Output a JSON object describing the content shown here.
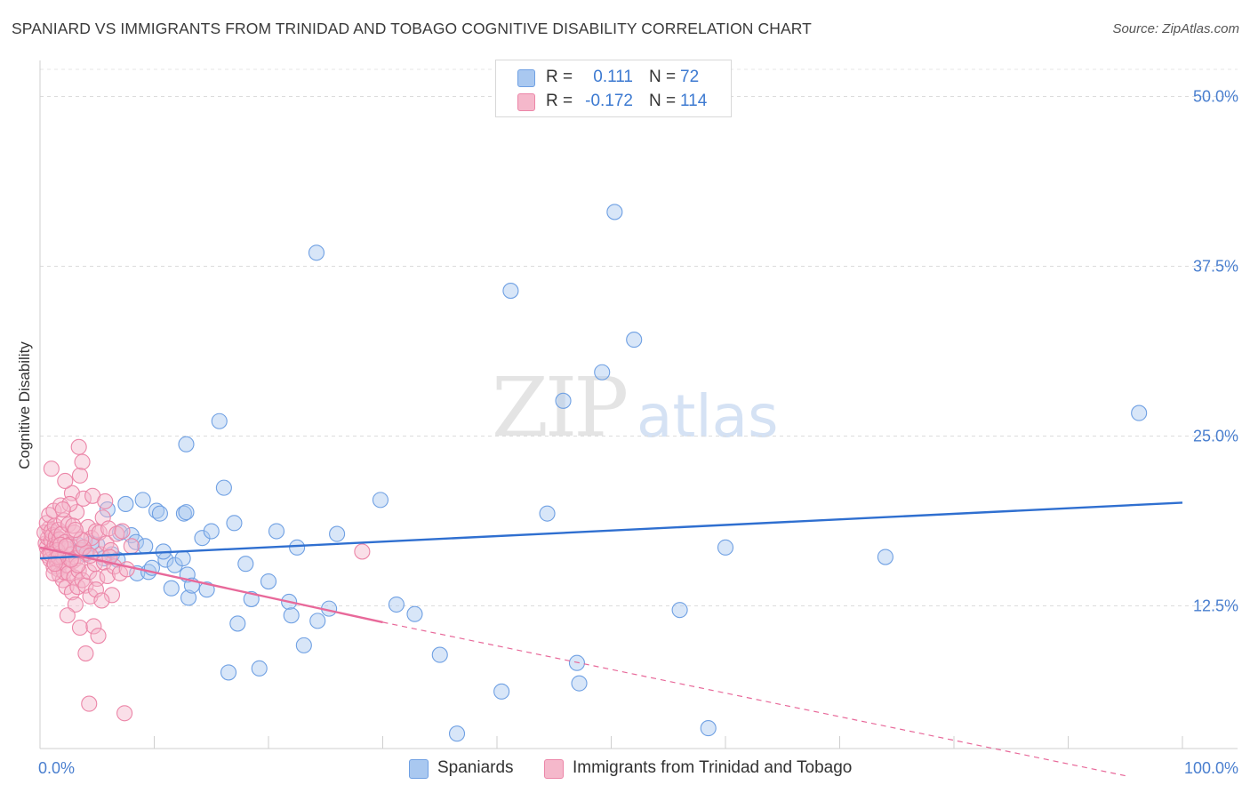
{
  "title": "SPANIARD VS IMMIGRANTS FROM TRINIDAD AND TOBAGO COGNITIVE DISABILITY CORRELATION CHART",
  "source": "Source: ZipAtlas.com",
  "watermark": {
    "zip": "ZIP",
    "atlas": "atlas"
  },
  "legend_top": [
    {
      "r_label": "R =",
      "r_value": "0.111",
      "n_label": "N =",
      "n_value": "72",
      "color": "#a9c8f0"
    },
    {
      "r_label": "R =",
      "r_value": "-0.172",
      "n_label": "N =",
      "n_value": "114",
      "color": "#f5b8cb"
    }
  ],
  "legend_bottom": [
    {
      "label": "Spaniards",
      "color": "#a9c8f0"
    },
    {
      "label": "Immigrants from Trinidad and Tobago",
      "color": "#f5b8cb"
    }
  ],
  "chart_data": {
    "type": "scatter",
    "title": "SPANIARD VS IMMIGRANTS FROM TRINIDAD AND TOBAGO COGNITIVE DISABILITY CORRELATION CHART",
    "xlabel": "",
    "ylabel": "Cognitive Disability",
    "xlim": [
      0,
      100
    ],
    "ylim": [
      2,
      52
    ],
    "x_tick_labels": [
      "0.0%",
      "100.0%"
    ],
    "y_ticks": [
      12.5,
      25.0,
      37.5,
      50.0
    ],
    "y_tick_labels": [
      "12.5%",
      "25.0%",
      "37.5%",
      "50.0%"
    ],
    "grid": true,
    "legend_position": "top-center",
    "series": [
      {
        "name": "Spaniards",
        "color": "#6fa0e3",
        "fill": "#a9c8f0",
        "trend": {
          "x": [
            0,
            100
          ],
          "y": [
            16.0,
            20.1
          ],
          "style": "solid"
        },
        "points": [
          [
            3.3,
            17.0
          ],
          [
            4.0,
            16.3
          ],
          [
            3.5,
            16.6
          ],
          [
            5.0,
            17.0
          ],
          [
            5.6,
            16.0
          ],
          [
            6.3,
            16.3
          ],
          [
            5.9,
            19.6
          ],
          [
            7.0,
            17.9
          ],
          [
            7.5,
            20.0
          ],
          [
            8.0,
            17.7
          ],
          [
            8.5,
            14.9
          ],
          [
            8.4,
            17.2
          ],
          [
            9.0,
            20.3
          ],
          [
            9.2,
            16.9
          ],
          [
            9.5,
            15.0
          ],
          [
            9.8,
            15.3
          ],
          [
            10.2,
            19.5
          ],
          [
            10.5,
            19.3
          ],
          [
            11.0,
            15.9
          ],
          [
            11.5,
            13.8
          ],
          [
            11.8,
            15.5
          ],
          [
            12.5,
            16.0
          ],
          [
            12.6,
            19.3
          ],
          [
            12.9,
            14.8
          ],
          [
            12.8,
            19.4
          ],
          [
            13.0,
            13.1
          ],
          [
            13.3,
            14.0
          ],
          [
            14.2,
            17.5
          ],
          [
            14.6,
            13.7
          ],
          [
            16.1,
            21.2
          ],
          [
            16.5,
            7.6
          ],
          [
            17.0,
            18.6
          ],
          [
            17.3,
            11.2
          ],
          [
            18.0,
            15.6
          ],
          [
            19.2,
            7.9
          ],
          [
            20.0,
            14.3
          ],
          [
            20.7,
            18.0
          ],
          [
            21.8,
            12.8
          ],
          [
            22.0,
            11.8
          ],
          [
            22.5,
            16.8
          ],
          [
            23.1,
            9.6
          ],
          [
            24.3,
            11.4
          ],
          [
            25.3,
            12.3
          ],
          [
            26.0,
            17.8
          ],
          [
            15.7,
            26.1
          ],
          [
            12.8,
            24.4
          ],
          [
            24.2,
            38.5
          ],
          [
            29.8,
            20.3
          ],
          [
            31.2,
            12.6
          ],
          [
            32.8,
            11.9
          ],
          [
            35.0,
            8.9
          ],
          [
            36.5,
            3.1
          ],
          [
            40.4,
            6.2
          ],
          [
            41.2,
            35.7
          ],
          [
            44.4,
            19.3
          ],
          [
            45.8,
            27.6
          ],
          [
            47.0,
            8.3
          ],
          [
            47.2,
            6.8
          ],
          [
            49.2,
            29.7
          ],
          [
            50.3,
            41.5
          ],
          [
            52.0,
            32.1
          ],
          [
            56.0,
            12.2
          ],
          [
            58.5,
            3.5
          ],
          [
            60.0,
            16.8
          ],
          [
            74.0,
            16.1
          ],
          [
            96.2,
            26.7
          ],
          [
            18.5,
            13.0
          ],
          [
            4.5,
            17.1
          ],
          [
            6.8,
            15.9
          ],
          [
            10.8,
            16.5
          ],
          [
            15.0,
            18.0
          ],
          [
            3.8,
            16.8
          ]
        ]
      },
      {
        "name": "Immigrants from Trinidad and Tobago",
        "color": "#ec86a8",
        "fill": "#f5b8cb",
        "trend": {
          "x": [
            0,
            30
          ],
          "y": [
            16.8,
            11.3
          ],
          "style": "solid"
        },
        "trend_ext": {
          "x": [
            30,
            95
          ],
          "y": [
            11.3,
            0.0
          ],
          "style": "dashed"
        },
        "points": [
          [
            0.5,
            17.1
          ],
          [
            0.6,
            16.8
          ],
          [
            0.7,
            17.5
          ],
          [
            0.8,
            18.2
          ],
          [
            0.9,
            16.5
          ],
          [
            0.4,
            17.9
          ],
          [
            0.6,
            18.6
          ],
          [
            0.7,
            16.2
          ],
          [
            0.8,
            19.2
          ],
          [
            0.9,
            15.9
          ],
          [
            1.0,
            17.3
          ],
          [
            1.0,
            18.0
          ],
          [
            1.1,
            16.6
          ],
          [
            1.1,
            17.7
          ],
          [
            1.2,
            19.5
          ],
          [
            1.2,
            15.4
          ],
          [
            1.3,
            17.0
          ],
          [
            1.3,
            18.4
          ],
          [
            1.4,
            16.0
          ],
          [
            1.4,
            17.6
          ],
          [
            1.5,
            15.6
          ],
          [
            1.5,
            16.9
          ],
          [
            1.6,
            18.1
          ],
          [
            1.6,
            15.2
          ],
          [
            1.7,
            17.4
          ],
          [
            1.7,
            14.8
          ],
          [
            1.8,
            16.4
          ],
          [
            1.8,
            19.9
          ],
          [
            1.9,
            15.7
          ],
          [
            1.9,
            17.8
          ],
          [
            2.0,
            16.1
          ],
          [
            2.0,
            14.4
          ],
          [
            2.1,
            18.8
          ],
          [
            2.1,
            15.0
          ],
          [
            2.2,
            17.2
          ],
          [
            2.3,
            16.7
          ],
          [
            2.3,
            13.9
          ],
          [
            2.4,
            15.5
          ],
          [
            2.5,
            18.5
          ],
          [
            2.5,
            14.9
          ],
          [
            2.6,
            17.0
          ],
          [
            2.7,
            16.3
          ],
          [
            2.8,
            13.5
          ],
          [
            2.8,
            20.8
          ],
          [
            2.9,
            15.8
          ],
          [
            3.0,
            14.6
          ],
          [
            3.0,
            17.9
          ],
          [
            3.1,
            12.6
          ],
          [
            3.2,
            16.0
          ],
          [
            3.2,
            19.4
          ],
          [
            3.3,
            13.9
          ],
          [
            3.4,
            15.1
          ],
          [
            3.5,
            22.1
          ],
          [
            3.5,
            10.9
          ],
          [
            3.6,
            16.6
          ],
          [
            3.7,
            14.4
          ],
          [
            3.7,
            23.1
          ],
          [
            3.8,
            20.4
          ],
          [
            3.9,
            17.3
          ],
          [
            4.0,
            14.0
          ],
          [
            4.0,
            9.0
          ],
          [
            4.1,
            16.4
          ],
          [
            4.2,
            18.3
          ],
          [
            4.3,
            15.0
          ],
          [
            4.3,
            5.3
          ],
          [
            4.4,
            13.2
          ],
          [
            4.5,
            17.5
          ],
          [
            4.6,
            20.6
          ],
          [
            4.7,
            11.0
          ],
          [
            4.8,
            15.6
          ],
          [
            4.9,
            18.0
          ],
          [
            5.0,
            14.5
          ],
          [
            5.1,
            10.3
          ],
          [
            5.2,
            17.9
          ],
          [
            5.3,
            16.3
          ],
          [
            5.5,
            19.0
          ],
          [
            5.6,
            15.7
          ],
          [
            5.7,
            20.2
          ],
          [
            5.8,
            17.1
          ],
          [
            5.9,
            14.7
          ],
          [
            6.0,
            18.2
          ],
          [
            6.2,
            16.6
          ],
          [
            6.3,
            13.3
          ],
          [
            6.5,
            15.4
          ],
          [
            6.7,
            17.8
          ],
          [
            7.0,
            14.9
          ],
          [
            7.2,
            18.0
          ],
          [
            7.4,
            4.6
          ],
          [
            7.6,
            15.2
          ],
          [
            8.0,
            16.9
          ],
          [
            1.0,
            22.6
          ],
          [
            2.2,
            21.7
          ],
          [
            3.4,
            24.2
          ],
          [
            2.6,
            20.0
          ],
          [
            3.8,
            16.8
          ],
          [
            1.5,
            16.6
          ],
          [
            2.0,
            19.6
          ],
          [
            2.4,
            11.8
          ],
          [
            2.9,
            18.4
          ],
          [
            3.3,
            15.5
          ],
          [
            1.2,
            14.9
          ],
          [
            0.9,
            16.3
          ],
          [
            1.8,
            17.0
          ],
          [
            2.7,
            15.9
          ],
          [
            3.6,
            17.4
          ],
          [
            4.9,
            13.7
          ],
          [
            5.4,
            12.9
          ],
          [
            6.1,
            16.1
          ],
          [
            28.2,
            16.5
          ],
          [
            1.6,
            16.1
          ],
          [
            2.3,
            16.9
          ],
          [
            3.1,
            18.1
          ],
          [
            4.4,
            16.2
          ],
          [
            1.3,
            15.6
          ]
        ]
      }
    ]
  }
}
